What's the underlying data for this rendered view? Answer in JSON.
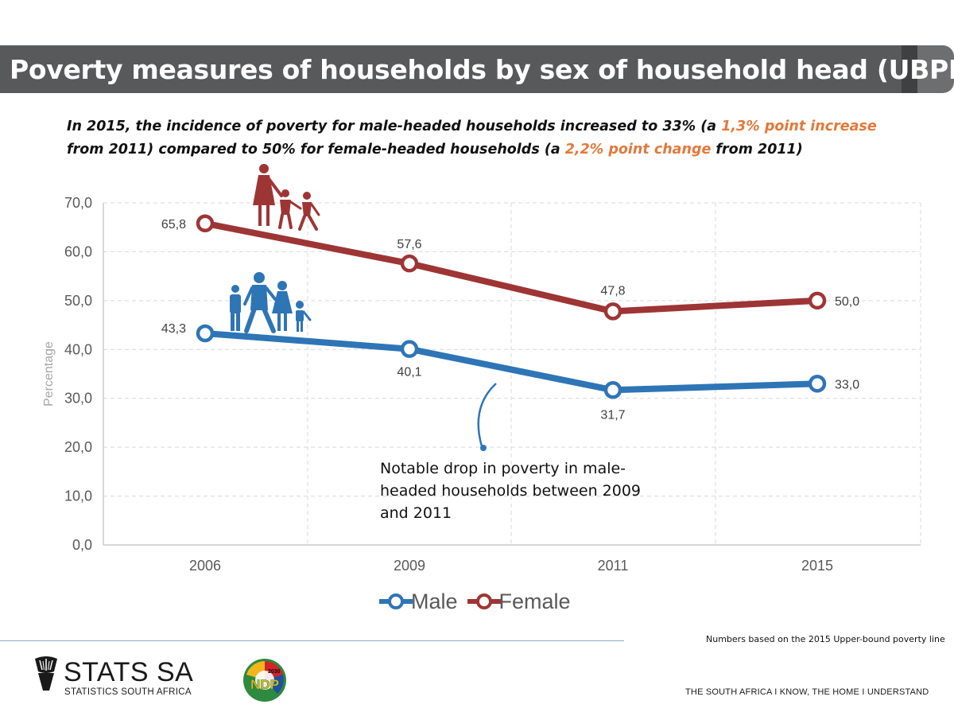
{
  "header": {
    "title": "Poverty measures of households by sex of household head (UBPL)"
  },
  "subtitle": {
    "part1": "In 2015, the incidence of poverty for male-headed households increased  to 33%  (a ",
    "highlight1": "1,3% point increase",
    "part2": " from 2011) compared to 50% for female-headed households (a ",
    "highlight2": "2,2% point change",
    "part3": " from 2011)"
  },
  "annotation": {
    "text": "Notable drop in poverty in male-headed households between 2009 and 2011"
  },
  "footer": {
    "footnote": "Numbers based on the 2015 Upper-bound poverty line",
    "org_name": "STATS SA",
    "org_full_name": "STATISTICS SOUTH AFRICA",
    "ndp_year": "2030",
    "ndp_text": "NDP",
    "tagline": "THE SOUTH AFRICA I KNOW, THE HOME I UNDERSTAND"
  },
  "colors": {
    "male": "#2e75b6",
    "female": "#9e3535",
    "title_bar": "#58595b",
    "highlight": "#e2793a"
  },
  "icons": [
    "female-family-icon",
    "male-family-icon",
    "stats-sa-logo-icon",
    "ndp-logo-icon"
  ],
  "chart_data": {
    "type": "line",
    "categories": [
      "2006",
      "2009",
      "2011",
      "2015"
    ],
    "series": [
      {
        "name": "Male",
        "values": [
          43.3,
          40.1,
          31.7,
          33.0
        ],
        "labels": [
          "43,3",
          "40,1",
          "31,7",
          "33,0"
        ],
        "color": "#2e75b6"
      },
      {
        "name": "Female",
        "values": [
          65.8,
          57.6,
          47.8,
          50.0
        ],
        "labels": [
          "65,8",
          "57,6",
          "47,8",
          "50,0"
        ],
        "color": "#9e3535"
      }
    ],
    "ylabel": "Percentage",
    "xlabel": "",
    "ylim": [
      0,
      70
    ],
    "yticks": [
      0,
      10,
      20,
      30,
      40,
      50,
      60,
      70
    ],
    "ytick_labels": [
      "0,0",
      "10,0",
      "20,0",
      "30,0",
      "40,0",
      "50,0",
      "60,0",
      "70,0"
    ],
    "grid": true,
    "legend": "bottom"
  }
}
